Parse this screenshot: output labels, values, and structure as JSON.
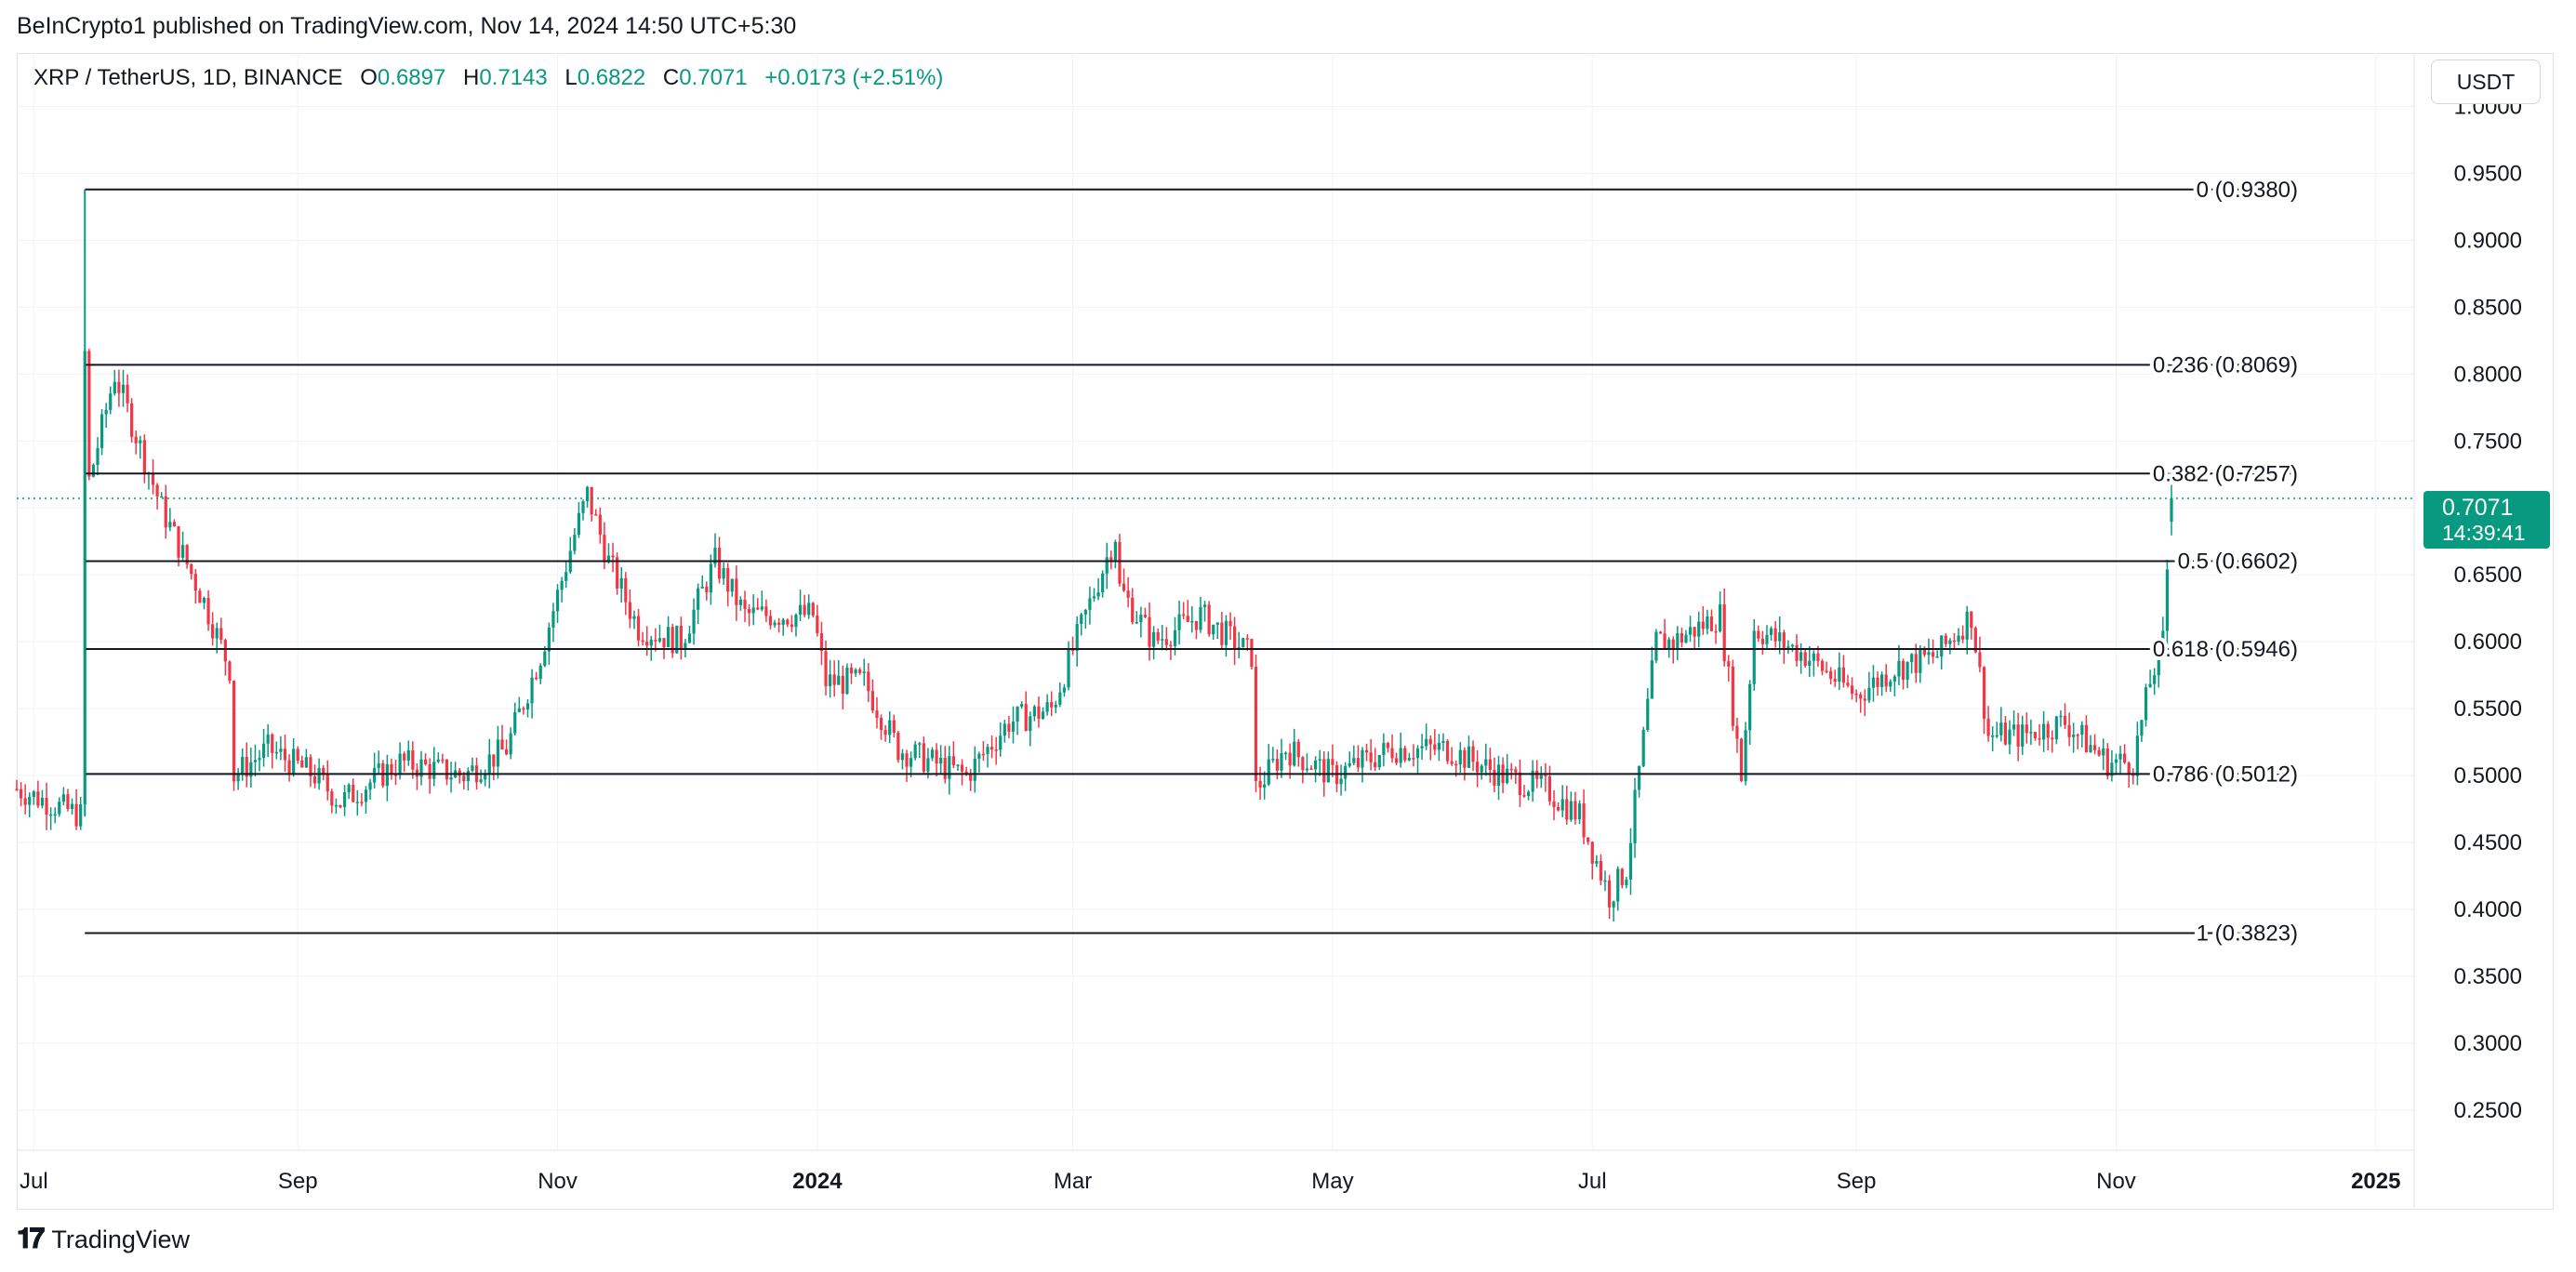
{
  "publisher_line": "BeInCrypto1 published on TradingView.com, Nov 14, 2024 14:50 UTC+5:30",
  "legend": {
    "symbol": "XRP / TetherUS, 1D, BINANCE",
    "open_label": "O",
    "open": "0.6897",
    "high_label": "H",
    "high": "0.7143",
    "low_label": "L",
    "low": "0.6822",
    "close_label": "C",
    "close": "0.7071",
    "change": "+0.0173 (+2.51%)"
  },
  "currency_button": "USDT",
  "last_price": {
    "price": "0.7071",
    "countdown": "14:39:41"
  },
  "brand": "TradingView",
  "colors": {
    "up": "#089981",
    "down": "#f23645",
    "grid": "#f0f3fa",
    "line": "#131722",
    "text": "#131722"
  },
  "chart_data": {
    "type": "candlestick",
    "timeframe": "1D",
    "x_range": [
      "2023-06-27",
      "2025-01-10"
    ],
    "ylim": [
      0.22,
      1.04
    ],
    "grid": true,
    "y_ticks": [
      "1.0000",
      "0.9500",
      "0.9000",
      "0.8500",
      "0.8000",
      "0.7500",
      "0.7000",
      "0.6500",
      "0.6000",
      "0.5500",
      "0.5000",
      "0.4500",
      "0.4000",
      "0.3500",
      "0.3000",
      "0.2500"
    ],
    "x_ticks": [
      {
        "label": "Jul",
        "date": "2023-07-01",
        "bold": false
      },
      {
        "label": "Sep",
        "date": "2023-09-01",
        "bold": false
      },
      {
        "label": "Nov",
        "date": "2023-11-01",
        "bold": false
      },
      {
        "label": "2024",
        "date": "2024-01-01",
        "bold": true
      },
      {
        "label": "Mar",
        "date": "2024-03-01",
        "bold": false
      },
      {
        "label": "May",
        "date": "2024-05-01",
        "bold": false
      },
      {
        "label": "Jul",
        "date": "2024-07-01",
        "bold": false
      },
      {
        "label": "Sep",
        "date": "2024-09-01",
        "bold": false
      },
      {
        "label": "Nov",
        "date": "2024-11-01",
        "bold": false
      },
      {
        "label": "2025",
        "date": "2025-01-01",
        "bold": true
      }
    ],
    "fibonacci": {
      "start_date": "2023-07-13",
      "end_date": "2024-11-20",
      "levels": [
        {
          "ratio": "0",
          "price": 0.938,
          "label": "0 (0.9380)"
        },
        {
          "ratio": "0.236",
          "price": 0.8069,
          "label": "0.236 (0.8069)"
        },
        {
          "ratio": "0.382",
          "price": 0.7257,
          "label": "0.382 (0.7257)"
        },
        {
          "ratio": "0.5",
          "price": 0.6602,
          "label": "0.5 (0.6602)"
        },
        {
          "ratio": "0.618",
          "price": 0.5946,
          "label": "0.618 (0.5946)"
        },
        {
          "ratio": "0.786",
          "price": 0.5012,
          "label": "0.786 (0.5012)"
        },
        {
          "ratio": "1",
          "price": 0.3823,
          "label": "1 (0.3823)"
        }
      ]
    },
    "last_close": 0.7071,
    "anchors": [
      [
        "2023-06-27",
        0.49
      ],
      [
        "2023-07-12",
        0.47
      ],
      [
        "2023-07-13",
        0.815
      ],
      [
        "2023-07-14",
        0.72
      ],
      [
        "2023-07-20",
        0.8
      ],
      [
        "2023-07-31",
        0.7
      ],
      [
        "2023-08-10",
        0.63
      ],
      [
        "2023-08-16",
        0.58
      ],
      [
        "2023-08-17",
        0.5
      ],
      [
        "2023-08-25",
        0.52
      ],
      [
        "2023-09-05",
        0.5
      ],
      [
        "2023-09-11",
        0.48
      ],
      [
        "2023-09-25",
        0.51
      ],
      [
        "2023-10-10",
        0.5
      ],
      [
        "2023-10-20",
        0.52
      ],
      [
        "2023-10-28",
        0.59
      ],
      [
        "2023-11-05",
        0.68
      ],
      [
        "2023-11-08",
        0.71
      ],
      [
        "2023-11-13",
        0.66
      ],
      [
        "2023-11-20",
        0.61
      ],
      [
        "2023-11-30",
        0.6
      ],
      [
        "2023-12-08",
        0.66
      ],
      [
        "2023-12-15",
        0.62
      ],
      [
        "2023-12-31",
        0.62
      ],
      [
        "2024-01-03",
        0.57
      ],
      [
        "2024-01-12",
        0.57
      ],
      [
        "2024-01-20",
        0.52
      ],
      [
        "2024-02-05",
        0.5
      ],
      [
        "2024-02-15",
        0.54
      ],
      [
        "2024-02-25",
        0.55
      ],
      [
        "2024-03-04",
        0.62
      ],
      [
        "2024-03-11",
        0.68
      ],
      [
        "2024-03-12",
        0.64
      ],
      [
        "2024-03-20",
        0.6
      ],
      [
        "2024-03-31",
        0.62
      ],
      [
        "2024-04-12",
        0.59
      ],
      [
        "2024-04-13",
        0.49
      ],
      [
        "2024-04-20",
        0.52
      ],
      [
        "2024-05-01",
        0.5
      ],
      [
        "2024-05-15",
        0.52
      ],
      [
        "2024-05-28",
        0.52
      ],
      [
        "2024-06-10",
        0.5
      ],
      [
        "2024-06-20",
        0.49
      ],
      [
        "2024-06-28",
        0.47
      ],
      [
        "2024-07-05",
        0.41
      ],
      [
        "2024-07-09",
        0.43
      ],
      [
        "2024-07-16",
        0.6
      ],
      [
        "2024-07-20",
        0.6
      ],
      [
        "2024-07-31",
        0.62
      ],
      [
        "2024-08-05",
        0.5
      ],
      [
        "2024-08-08",
        0.61
      ],
      [
        "2024-08-20",
        0.59
      ],
      [
        "2024-09-01",
        0.56
      ],
      [
        "2024-09-10",
        0.58
      ],
      [
        "2024-09-20",
        0.59
      ],
      [
        "2024-09-28",
        0.62
      ],
      [
        "2024-10-02",
        0.53
      ],
      [
        "2024-10-10",
        0.53
      ],
      [
        "2024-10-20",
        0.54
      ],
      [
        "2024-10-30",
        0.51
      ],
      [
        "2024-11-05",
        0.51
      ],
      [
        "2024-11-09",
        0.57
      ],
      [
        "2024-11-12",
        0.6
      ],
      [
        "2024-11-14",
        0.71
      ]
    ]
  }
}
